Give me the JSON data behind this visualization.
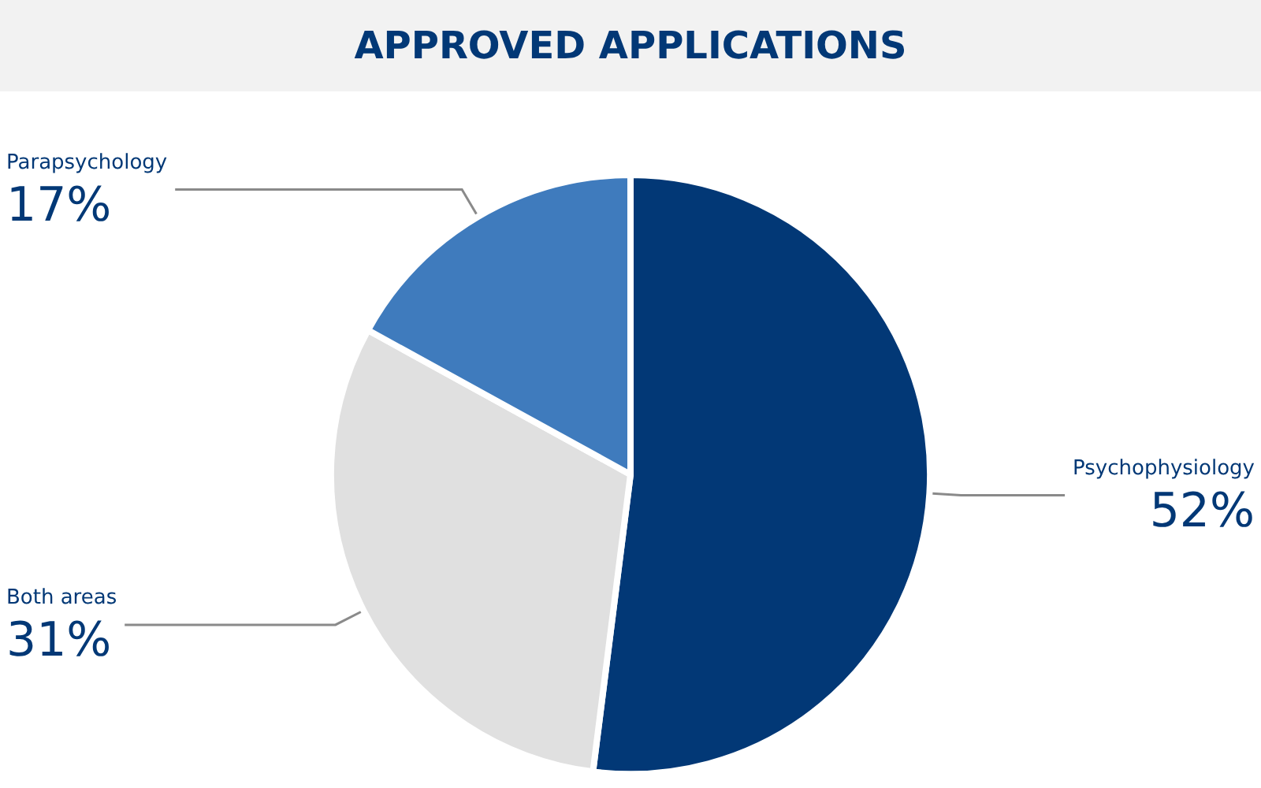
{
  "chart_data": {
    "type": "pie",
    "title": "APPROVED APPLICATIONS",
    "categories": [
      "Psychophysiology",
      "Both areas",
      "Parapsychology"
    ],
    "values": [
      52,
      31,
      17
    ],
    "colors": [
      "#023876",
      "#e0e0e0",
      "#3f7bbd"
    ],
    "value_labels": [
      "52%",
      "31%",
      "17%"
    ]
  }
}
